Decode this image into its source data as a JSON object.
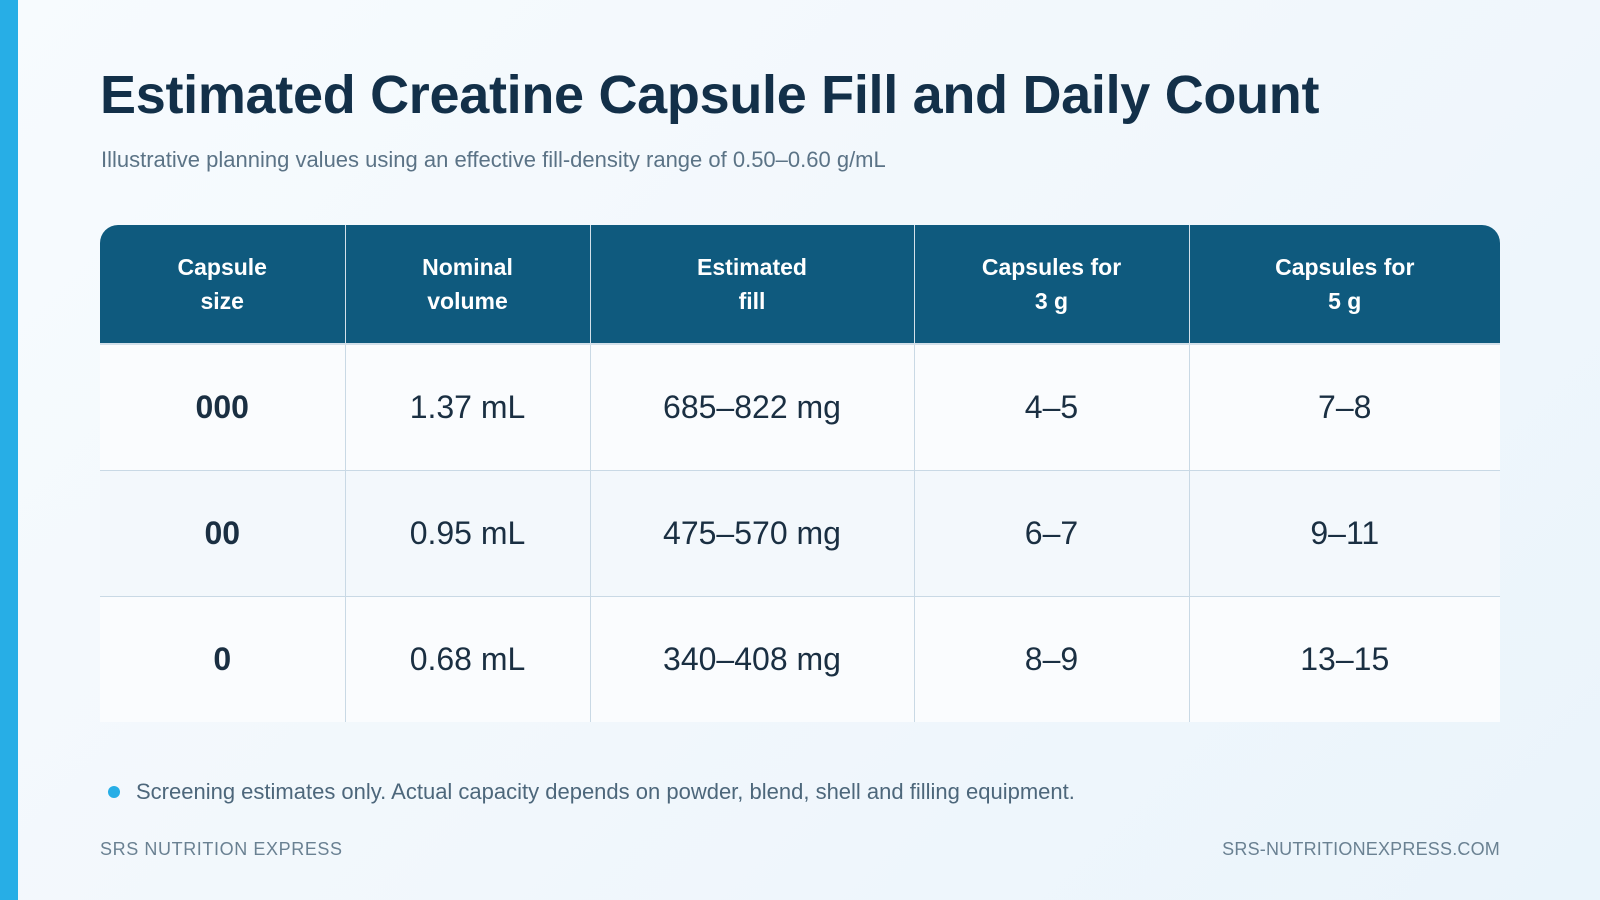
{
  "title": "Estimated Creatine Capsule Fill and Daily Count",
  "subtitle": "Illustrative planning values using an effective fill-density range of 0.50–0.60 g/mL",
  "table": {
    "headers": [
      {
        "line1": "Capsule",
        "line2": "size"
      },
      {
        "line1": "Nominal",
        "line2": "volume"
      },
      {
        "line1": "Estimated",
        "line2": "fill"
      },
      {
        "line1": "Capsules for",
        "line2": "3 g"
      },
      {
        "line1": "Capsules for",
        "line2": "5 g"
      }
    ],
    "rows": [
      {
        "size": "000",
        "volume": "1.37 mL",
        "fill": "685–822 mg",
        "caps3g": "4–5",
        "caps5g": "7–8"
      },
      {
        "size": "00",
        "volume": "0.95 mL",
        "fill": "475–570 mg",
        "caps3g": "6–7",
        "caps5g": "9–11"
      },
      {
        "size": "0",
        "volume": "0.68 mL",
        "fill": "340–408 mg",
        "caps3g": "8–9",
        "caps5g": "13–15"
      }
    ]
  },
  "note": "Screening estimates only. Actual capacity depends on powder, blend, shell and filling equipment.",
  "footer": {
    "brand": "SRS NUTRITION EXPRESS",
    "website": "SRS-NUTRITIONEXPRESS.COM"
  },
  "colors": {
    "accent": "#27aee6",
    "header_bg": "#0f5a7e",
    "title_text": "#133049"
  },
  "icons": {
    "note_bullet": "bullet-dot-icon"
  }
}
